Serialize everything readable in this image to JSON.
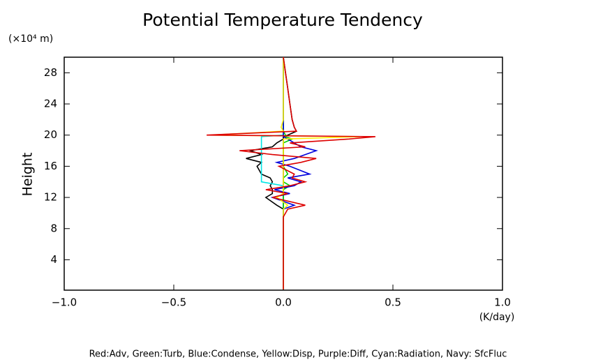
{
  "chart_data": {
    "type": "line",
    "title": "Potential Temperature Tendency",
    "y_unit": "(×10⁴ m)",
    "y_label": "Height",
    "x_unit": "(K/day)",
    "caption": "Red:Adv, Green:Turb, Blue:Condense, Yellow:Disp, Purple:Diff, Cyan:Radiation, Navy: SfcFluc",
    "xlim": [
      -1,
      1
    ],
    "xticks": [
      {
        "value": -1,
        "label": "−1.0"
      },
      {
        "value": -0.5,
        "label": "−0.5"
      },
      {
        "value": 0,
        "label": "0.0"
      },
      {
        "value": 0.5,
        "label": "0.5"
      },
      {
        "value": 1,
        "label": "1.0"
      }
    ],
    "ylim": [
      0.1,
      30
    ],
    "yticks": [
      4,
      8,
      12,
      16,
      20,
      24,
      28
    ],
    "y": [
      0.2,
      4,
      8,
      9.5,
      10.5,
      11,
      12,
      12.5,
      13,
      13.5,
      14,
      14.5,
      15,
      16,
      16.5,
      17,
      17.5,
      18,
      18.5,
      19,
      19.5,
      19.8,
      20,
      20.5,
      21,
      22,
      24,
      26,
      28,
      30
    ],
    "series": [
      {
        "color": "#000080",
        "values": [
          0,
          0,
          0,
          0,
          0,
          0,
          0,
          0,
          0,
          0,
          0,
          0,
          0,
          0,
          0,
          0,
          0,
          0,
          0,
          0,
          0,
          0,
          0,
          0,
          0,
          0,
          0,
          0,
          0,
          0
        ]
      },
      {
        "color": "#000000",
        "values": [
          0,
          0,
          0,
          0,
          0,
          -0.03,
          -0.08,
          -0.05,
          -0.05,
          -0.06,
          -0.05,
          -0.06,
          -0.1,
          -0.12,
          -0.1,
          -0.17,
          -0.1,
          -0.15,
          -0.05,
          -0.03,
          0,
          0,
          0.02,
          0.06,
          0.05,
          0.04,
          0.03,
          0.02,
          0.01,
          0
        ]
      },
      {
        "color": "#00e5e5",
        "values": [
          0,
          0,
          0,
          0,
          0,
          0,
          0,
          0,
          0,
          0,
          -0.1,
          -0.1,
          -0.1,
          -0.1,
          -0.1,
          -0.1,
          -0.1,
          -0.1,
          -0.1,
          -0.1,
          -0.1,
          -0.1,
          0,
          0,
          0,
          0,
          0,
          0,
          0,
          0
        ]
      },
      {
        "color": "#00cc00",
        "values": [
          0,
          0,
          0,
          0,
          0,
          0,
          0,
          0,
          0,
          0.03,
          0,
          0,
          0.02,
          0,
          0,
          0,
          0,
          0,
          0,
          0,
          0.04,
          0.01,
          0.01,
          0,
          0,
          0,
          0,
          0,
          0,
          0
        ]
      },
      {
        "color": "#0000dd",
        "values": [
          0,
          0,
          0,
          0,
          0,
          0.05,
          -0.05,
          0.03,
          -0.04,
          0.05,
          0.08,
          0.02,
          0.12,
          0.03,
          -0.03,
          0.05,
          0.1,
          0.15,
          0.08,
          0.05,
          0.02,
          0,
          0,
          0,
          0,
          0,
          0,
          0,
          0,
          0
        ]
      },
      {
        "color": "#ffee00",
        "values": [
          0,
          0,
          0,
          0,
          0,
          0.02,
          -0.03,
          0,
          0,
          0,
          0,
          0,
          0,
          0,
          0,
          0,
          0,
          0,
          0,
          0,
          0,
          0.35,
          -0.33,
          0,
          -0.01,
          0,
          0,
          0,
          0,
          0
        ]
      },
      {
        "color": "#dd0000",
        "values": [
          0,
          0,
          0,
          0,
          0.02,
          0.1,
          -0.05,
          0.02,
          -0.08,
          0.03,
          0.1,
          0.04,
          0.05,
          -0.02,
          0.08,
          0.15,
          -0.05,
          -0.2,
          0.1,
          0.03,
          0.3,
          0.42,
          -0.35,
          0.06,
          0.05,
          0.04,
          0.03,
          0.02,
          0.01,
          0
        ]
      }
    ]
  }
}
